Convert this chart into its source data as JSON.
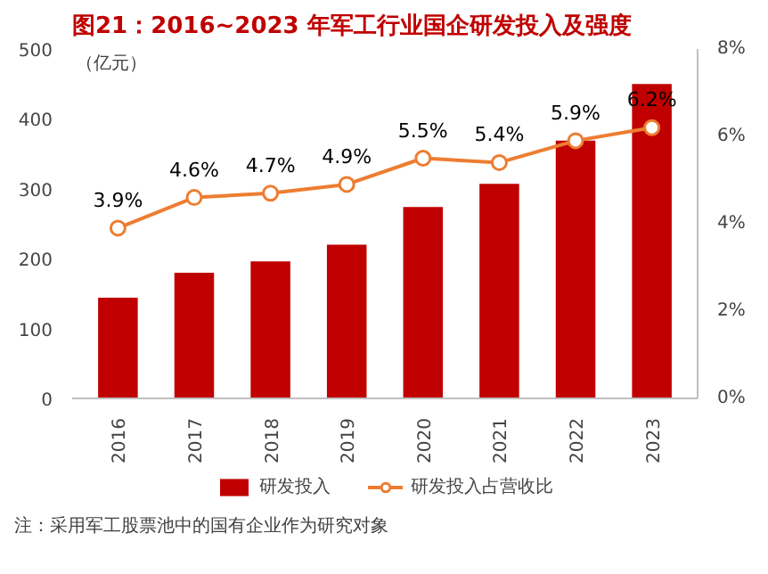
{
  "chart_data": {
    "type": "bar",
    "title": "图21：2016~2023 年军工行业国企研发投入及强度",
    "ylabel": "（亿元）",
    "categories": [
      "2016",
      "2017",
      "2018",
      "2019",
      "2020",
      "2021",
      "2022",
      "2023"
    ],
    "series": [
      {
        "name": "研发投入",
        "color": "#c00000",
        "values": [
          144,
          180,
          196,
          220,
          274,
          307,
          369,
          450
        ]
      },
      {
        "name": "研发投入占营收比",
        "type": "line",
        "axis": "y2",
        "color": "#ed7d31",
        "marker": "circle",
        "values": [
          3.9,
          4.6,
          4.7,
          4.9,
          5.5,
          5.4,
          5.9,
          6.2
        ],
        "value_labels": [
          "3.9%",
          "4.6%",
          "4.7%",
          "4.9%",
          "5.5%",
          "5.4%",
          "5.9%",
          "6.2%"
        ]
      }
    ],
    "ylim": [
      0,
      500
    ],
    "yticks": [
      0,
      100,
      200,
      300,
      400,
      500
    ],
    "y2lim": [
      0,
      8
    ],
    "y2ticks": [
      {
        "value": 0,
        "label": "0%"
      },
      {
        "value": 2,
        "label": "2%"
      },
      {
        "value": 4,
        "label": "4%"
      },
      {
        "value": 6,
        "label": "6%"
      },
      {
        "value": 8,
        "label": "8%"
      }
    ],
    "legend": "bottom",
    "grid": false,
    "annotations": [
      "注：采用军工股票池中的国有企业作为研究对象"
    ]
  }
}
